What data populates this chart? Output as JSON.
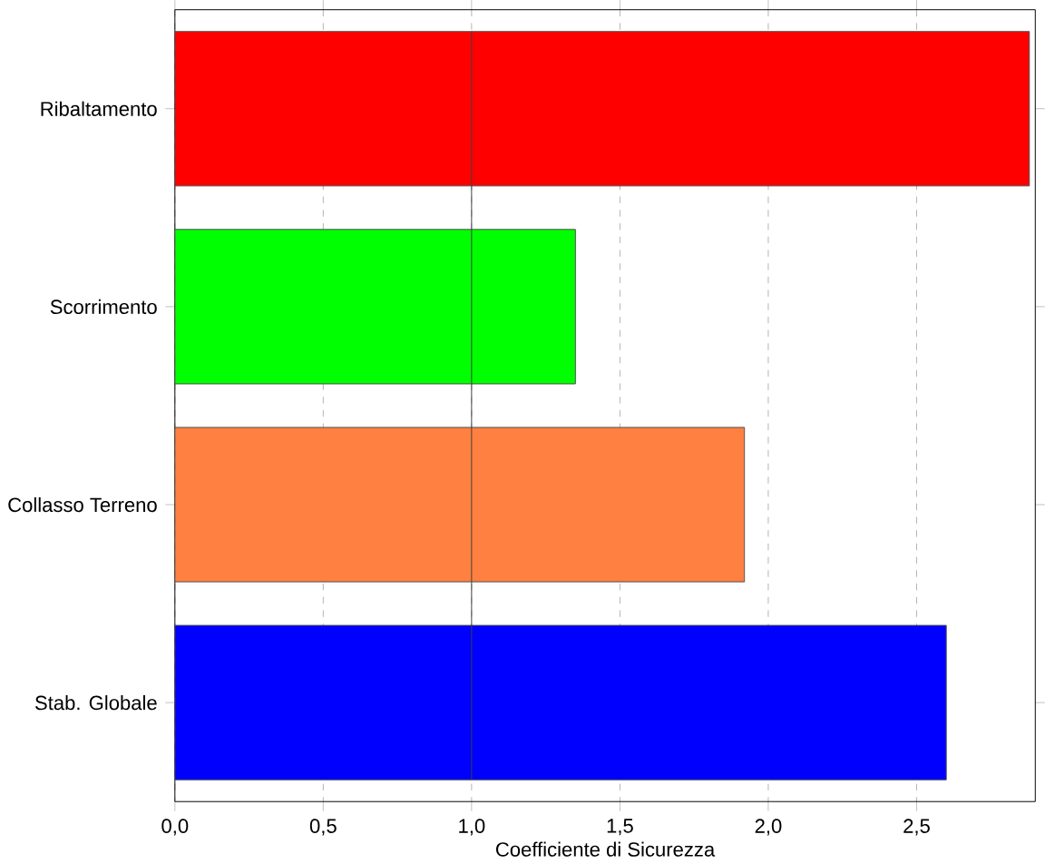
{
  "chart_data": {
    "type": "bar",
    "orientation": "horizontal",
    "xlabel": "Coefficiente di Sicurezza",
    "categories": [
      "Ribaltamento",
      "Scorrimento",
      "Collasso Terreno",
      "Stab. Globale"
    ],
    "values": [
      2.88,
      1.35,
      1.92,
      2.6
    ],
    "colors": [
      "#ff0000",
      "#00ff00",
      "#ff8040",
      "#0000ff"
    ],
    "xlim": [
      0,
      2.9
    ],
    "xticks": [
      {
        "value": 0,
        "label": "0,0"
      },
      {
        "value": 0.5,
        "label": "0,5"
      },
      {
        "value": 1,
        "label": "1,0"
      },
      {
        "value": 1.5,
        "label": "1,5"
      },
      {
        "value": 2,
        "label": "2,0"
      },
      {
        "value": 2.5,
        "label": "2,5"
      }
    ],
    "ref_lines": [
      {
        "axis": "x",
        "value": 1,
        "color": "#404040"
      }
    ],
    "grid": "x"
  }
}
